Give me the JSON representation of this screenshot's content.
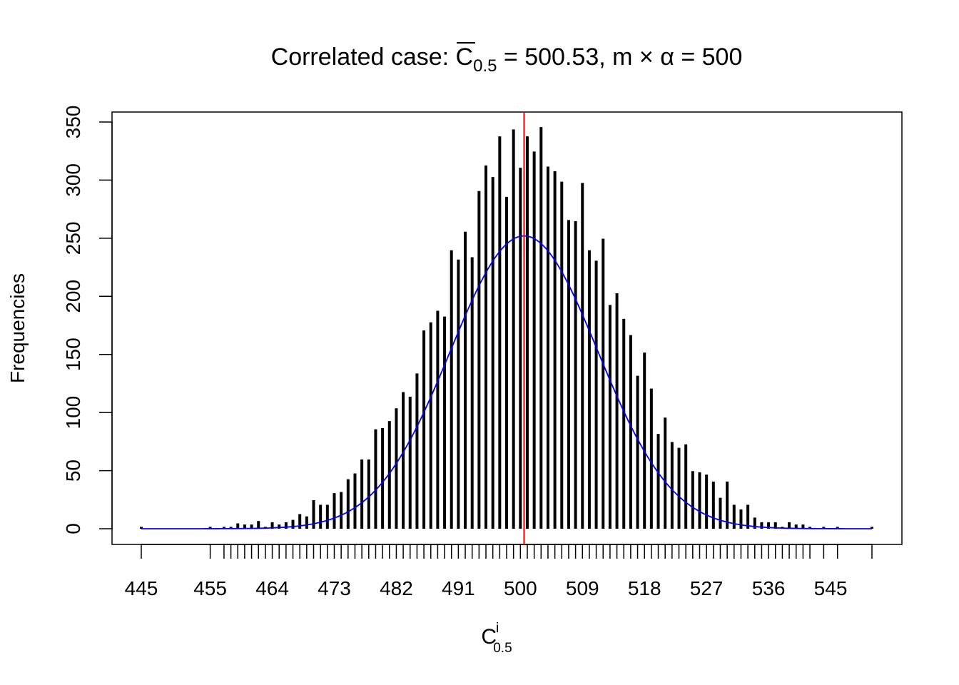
{
  "chart_data": {
    "type": "bar",
    "title": {
      "prefix": "Correlated case: ",
      "stat_symbol": "C",
      "stat_subscript": "0.5",
      "equals_1": " = ",
      "value": "500.53,",
      "m": " m ",
      "times": "×",
      "alpha": " α ",
      "equals_2": "= 500"
    },
    "xlabel": {
      "base": "C",
      "superscript": "i",
      "subscript": "0.5"
    },
    "ylabel": "Frequencies",
    "ylim": [
      0,
      350
    ],
    "y_ticks": [
      0,
      50,
      100,
      150,
      200,
      250,
      300,
      350
    ],
    "x_tick_labels": [
      {
        "x": 445,
        "label": "445"
      },
      {
        "x": 455,
        "label": "455"
      },
      {
        "x": 464,
        "label": "464"
      },
      {
        "x": 473,
        "label": "473"
      },
      {
        "x": 482,
        "label": "482"
      },
      {
        "x": 491,
        "label": "491"
      },
      {
        "x": 500,
        "label": "500"
      },
      {
        "x": 509,
        "label": "509"
      },
      {
        "x": 518,
        "label": "518"
      },
      {
        "x": 527,
        "label": "527"
      },
      {
        "x": 536,
        "label": "536"
      },
      {
        "x": 545,
        "label": "545"
      }
    ],
    "x_range": [
      440.5,
      555.5
    ],
    "x": [
      445,
      455,
      457,
      458,
      459,
      460,
      461,
      462,
      463,
      464,
      465,
      466,
      467,
      468,
      469,
      470,
      471,
      472,
      473,
      474,
      475,
      476,
      477,
      478,
      479,
      480,
      481,
      482,
      483,
      484,
      485,
      486,
      487,
      488,
      489,
      490,
      491,
      492,
      493,
      494,
      495,
      496,
      497,
      498,
      499,
      500,
      501,
      502,
      503,
      504,
      505,
      506,
      507,
      508,
      509,
      510,
      511,
      512,
      513,
      514,
      515,
      516,
      517,
      518,
      519,
      520,
      521,
      522,
      523,
      524,
      525,
      526,
      527,
      528,
      529,
      530,
      531,
      532,
      533,
      534,
      535,
      536,
      537,
      538,
      539,
      540,
      541,
      542,
      544,
      546,
      551
    ],
    "frequencies": [
      1,
      1,
      1,
      1,
      4,
      3,
      3,
      6,
      1,
      5,
      3,
      5,
      7,
      12,
      10,
      24,
      20,
      20,
      30,
      31,
      42,
      47,
      59,
      59,
      85,
      86,
      92,
      103,
      117,
      113,
      133,
      170,
      177,
      187,
      182,
      239,
      231,
      255,
      233,
      290,
      312,
      302,
      337,
      285,
      343,
      310,
      337,
      324,
      345,
      311,
      307,
      298,
      265,
      264,
      297,
      239,
      230,
      249,
      192,
      202,
      180,
      166,
      131,
      151,
      120,
      81,
      95,
      74,
      69,
      72,
      49,
      48,
      46,
      40,
      26,
      40,
      20,
      16,
      20,
      9,
      5,
      5,
      5,
      1,
      5,
      3,
      3,
      1,
      1,
      1,
      1
    ],
    "normal_curve": {
      "mean": 500.53,
      "peak": 252
    },
    "reference_line_x": 500.53,
    "colors": {
      "bars": "#000000",
      "curve": "#0000ff",
      "reference_line": "#ff0000"
    }
  }
}
